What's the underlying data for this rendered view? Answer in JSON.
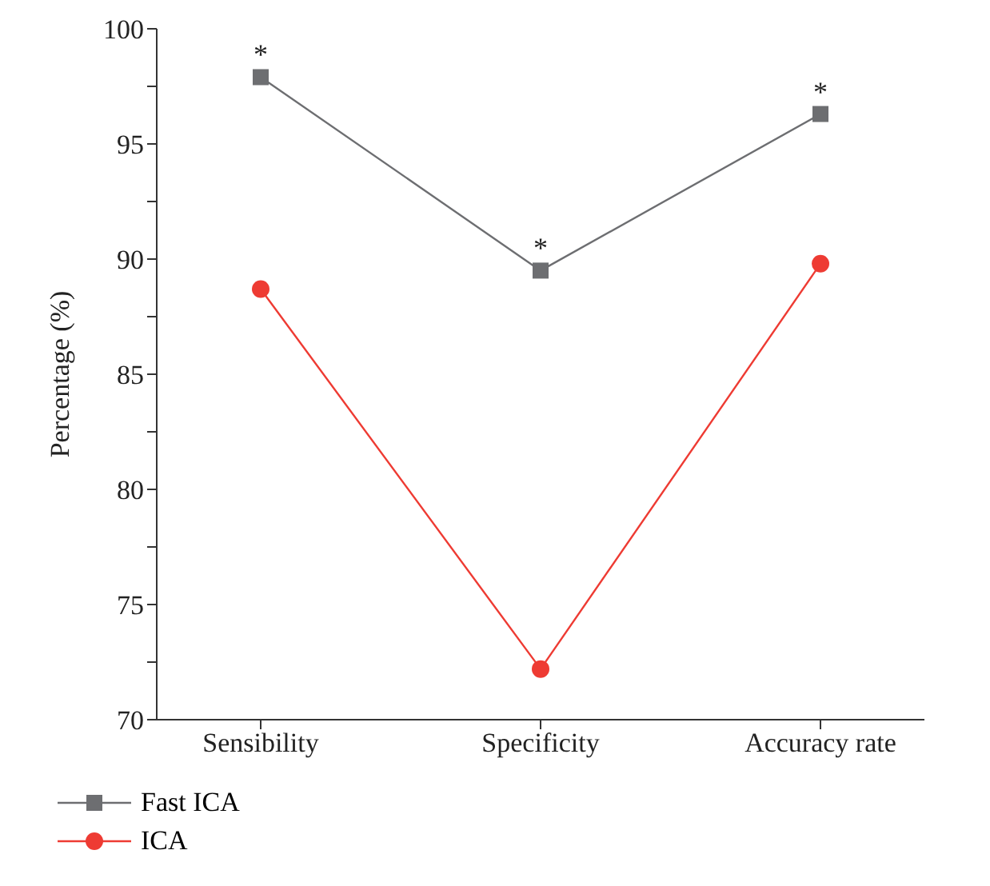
{
  "chart_data": {
    "type": "line",
    "ylabel": "Percentage (%)",
    "categories": [
      "Sensibility",
      "Specificity",
      "Accuracy rate"
    ],
    "series": [
      {
        "name": "Fast ICA",
        "color": "#6d6e71",
        "values": [
          97.9,
          89.5,
          96.3
        ],
        "marker": "square"
      },
      {
        "name": "ICA",
        "color": "#ee3b33",
        "values": [
          88.7,
          72.2,
          89.8
        ],
        "marker": "circle"
      }
    ],
    "ylim": [
      70,
      100
    ],
    "yticks": [
      70,
      {
        "value": 72.5,
        "label": null
      },
      75,
      {
        "value": 77.5,
        "label": null
      },
      80,
      {
        "value": 82.5,
        "label": null
      },
      85,
      {
        "value": 87.5,
        "label": null
      },
      90,
      {
        "value": 92.5,
        "label": null
      },
      95,
      {
        "value": 97.5,
        "label": null
      },
      100
    ],
    "grid": false,
    "legend": "bottom left",
    "line_style": "solid",
    "annotations": [
      {
        "text": "*",
        "x": "Sensibility",
        "y": 97.9
      },
      {
        "text": "*",
        "x": "Specificity",
        "y": 89.5
      },
      {
        "text": "*",
        "x": "Accuracy rate",
        "y": 96.3
      }
    ]
  }
}
